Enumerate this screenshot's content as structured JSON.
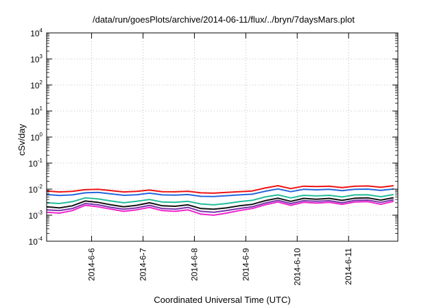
{
  "chart_data": {
    "type": "line",
    "title": "/data/run/goesPlots/archive/2014-06-11/flux/../bryn/7daysMars.plot",
    "xlabel": "Coordinated Universal Time (UTC)",
    "ylabel": "cSv/day",
    "yscale": "log",
    "ylim": [
      0.0001,
      10000
    ],
    "yticks": [
      {
        "base": "10",
        "exp": "-4"
      },
      {
        "base": "10",
        "exp": "-3"
      },
      {
        "base": "10",
        "exp": "-2"
      },
      {
        "base": "10",
        "exp": "-1"
      },
      {
        "base": "10",
        "exp": "0"
      },
      {
        "base": "10",
        "exp": "1"
      },
      {
        "base": "10",
        "exp": "2"
      },
      {
        "base": "10",
        "exp": "3"
      },
      {
        "base": "10",
        "exp": "4"
      }
    ],
    "xlim": [
      "2014-06-05 03:00",
      "2014-06-11 23:00"
    ],
    "xticks": [
      "2014-6-6",
      "2014-6-7",
      "2014-6-8",
      "2014-6-9",
      "2014-6-10",
      "2014-6-11"
    ],
    "grid": true,
    "x": [
      "2014-06-05 03:00",
      "2014-06-05 09:00",
      "2014-06-05 15:00",
      "2014-06-05 21:00",
      "2014-06-06 03:00",
      "2014-06-06 09:00",
      "2014-06-06 15:00",
      "2014-06-06 21:00",
      "2014-06-07 03:00",
      "2014-06-07 09:00",
      "2014-06-07 15:00",
      "2014-06-07 21:00",
      "2014-06-08 03:00",
      "2014-06-08 09:00",
      "2014-06-08 15:00",
      "2014-06-08 21:00",
      "2014-06-09 03:00",
      "2014-06-09 09:00",
      "2014-06-09 15:00",
      "2014-06-09 21:00",
      "2014-06-10 03:00",
      "2014-06-10 09:00",
      "2014-06-10 15:00",
      "2014-06-10 21:00",
      "2014-06-11 03:00",
      "2014-06-11 09:00",
      "2014-06-11 15:00",
      "2014-06-11 21:00"
    ],
    "series": [
      {
        "color": "#ee1111",
        "values": [
          0.0085,
          0.0078,
          0.0082,
          0.0095,
          0.0098,
          0.0088,
          0.0078,
          0.0082,
          0.0092,
          0.008,
          0.0079,
          0.0083,
          0.0072,
          0.007,
          0.0075,
          0.008,
          0.0085,
          0.011,
          0.0135,
          0.0105,
          0.013,
          0.0125,
          0.013,
          0.0115,
          0.013,
          0.0132,
          0.0118,
          0.0135
        ]
      },
      {
        "color": "#2266dd",
        "values": [
          0.0062,
          0.0057,
          0.006,
          0.0072,
          0.0075,
          0.0066,
          0.0058,
          0.0061,
          0.007,
          0.006,
          0.0059,
          0.0062,
          0.0053,
          0.0052,
          0.0056,
          0.006,
          0.0064,
          0.0083,
          0.0102,
          0.008,
          0.0098,
          0.0094,
          0.0098,
          0.0087,
          0.0099,
          0.01,
          0.0089,
          0.0102
        ]
      },
      {
        "color": "#22bb99",
        "values": [
          0.003,
          0.0028,
          0.0033,
          0.0046,
          0.0042,
          0.0035,
          0.003,
          0.0034,
          0.004,
          0.0032,
          0.0031,
          0.0034,
          0.0027,
          0.0025,
          0.0028,
          0.0033,
          0.0037,
          0.005,
          0.006,
          0.0046,
          0.0058,
          0.0055,
          0.0058,
          0.005,
          0.006,
          0.0061,
          0.0051,
          0.0062
        ]
      },
      {
        "color": "#111111",
        "values": [
          0.0021,
          0.0019,
          0.0023,
          0.0035,
          0.0031,
          0.0025,
          0.0021,
          0.0024,
          0.003,
          0.0023,
          0.0022,
          0.0025,
          0.0018,
          0.0017,
          0.0019,
          0.0023,
          0.0026,
          0.0036,
          0.0045,
          0.0034,
          0.0044,
          0.0041,
          0.0044,
          0.0037,
          0.0045,
          0.0046,
          0.0038,
          0.0047
        ]
      },
      {
        "color": "#7733aa",
        "values": [
          0.0016,
          0.0015,
          0.0018,
          0.0028,
          0.0025,
          0.002,
          0.0017,
          0.0019,
          0.0024,
          0.0018,
          0.0017,
          0.002,
          0.0014,
          0.0013,
          0.0015,
          0.0018,
          0.0021,
          0.0029,
          0.0037,
          0.0028,
          0.0036,
          0.0034,
          0.0036,
          0.003,
          0.0037,
          0.0038,
          0.0031,
          0.0039
        ]
      },
      {
        "color": "#ee22cc",
        "values": [
          0.0013,
          0.0012,
          0.0015,
          0.0024,
          0.0021,
          0.0017,
          0.0014,
          0.0016,
          0.002,
          0.0015,
          0.0014,
          0.0016,
          0.0011,
          0.001,
          0.0012,
          0.0015,
          0.0018,
          0.0025,
          0.0032,
          0.0024,
          0.0031,
          0.0029,
          0.0031,
          0.0026,
          0.0032,
          0.0033,
          0.0026,
          0.0034
        ]
      }
    ]
  }
}
